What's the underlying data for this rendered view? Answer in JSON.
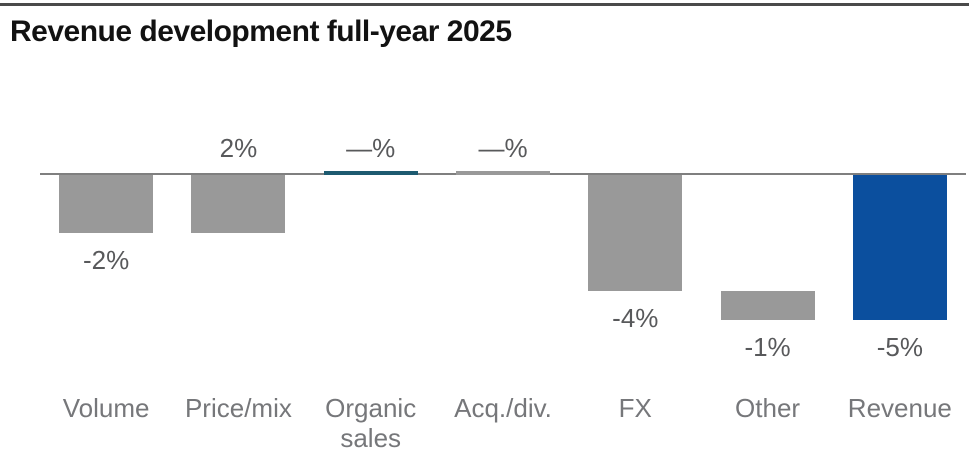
{
  "page": {
    "title": "Revenue development full-year 2025"
  },
  "colors": {
    "title_text": "#121212",
    "top_rule": "#4a4a4a",
    "axis_line": "#7f7f7f",
    "bar_gray": "#999999",
    "bar_blue": "#0b4f9e",
    "bar_zero_teal": "#1d5a70",
    "value_label": "#58595b",
    "category_label": "#76777a"
  },
  "chart_data": {
    "type": "bar",
    "subtype": "waterfall",
    "title": "Revenue development full-year 2025",
    "unit": "%",
    "categories": [
      "Volume",
      "Price/mix",
      "Organic sales",
      "Acq./div.",
      "FX",
      "Other",
      "Revenue"
    ],
    "values": [
      -2,
      2,
      0,
      0,
      -4,
      -1,
      -5
    ],
    "value_labels": [
      "-2%",
      "2%",
      "—%",
      "—%",
      "-4%",
      "-1%",
      "-5%"
    ],
    "bars": [
      {
        "category": "Volume",
        "value": -2,
        "display": "-2%",
        "start": 0,
        "end": -2,
        "color_key": "bar_gray",
        "value_label_position": "below"
      },
      {
        "category": "Price/mix",
        "value": 2,
        "display": "2%",
        "start": -2,
        "end": 0,
        "color_key": "bar_gray",
        "value_label_position": "above"
      },
      {
        "category": "Organic sales",
        "value": 0,
        "display": "—%",
        "start": 0,
        "end": 0,
        "color_key": "bar_zero_teal",
        "value_label_position": "above"
      },
      {
        "category": "Acq./div.",
        "value": 0,
        "display": "—%",
        "start": 0,
        "end": 0,
        "color_key": "bar_gray",
        "value_label_position": "above"
      },
      {
        "category": "FX",
        "value": -4,
        "display": "-4%",
        "start": 0,
        "end": -4,
        "color_key": "bar_gray",
        "value_label_position": "below"
      },
      {
        "category": "Other",
        "value": -1,
        "display": "-1%",
        "start": -4,
        "end": -5,
        "color_key": "bar_gray",
        "value_label_position": "below"
      },
      {
        "category": "Revenue",
        "value": -5,
        "display": "-5%",
        "start": 0,
        "end": -5,
        "color_key": "bar_blue",
        "value_label_position": "below"
      }
    ],
    "ylim": [
      -5,
      2
    ],
    "axis": {
      "baseline_value": 0,
      "gridlines": false,
      "legend": "none"
    }
  }
}
